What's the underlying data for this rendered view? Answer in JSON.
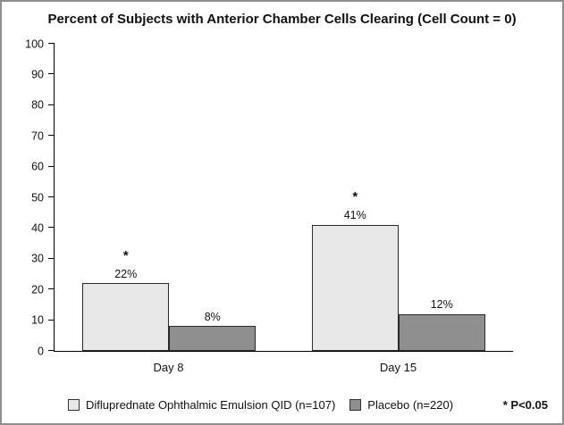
{
  "chart_data": {
    "type": "bar",
    "title": "Percent of Subjects with Anterior Chamber Cells Clearing (Cell Count = 0)",
    "categories": [
      "Day 8",
      "Day 15"
    ],
    "series": [
      {
        "name": "Difluprednate Ophthalmic Emulsion QID (n=107)",
        "values": [
          22,
          41
        ],
        "value_labels": [
          "22%",
          "41%"
        ],
        "significant": [
          true,
          true
        ],
        "color": "#e8e8e8"
      },
      {
        "name": "Placebo (n=220)",
        "values": [
          8,
          12
        ],
        "value_labels": [
          "8%",
          "12%"
        ],
        "significant": [
          false,
          false
        ],
        "color": "#8f8f8f"
      }
    ],
    "xlabel": "",
    "ylabel": "",
    "ylim": [
      0,
      100
    ],
    "yticks": [
      0,
      10,
      20,
      30,
      40,
      50,
      60,
      70,
      80,
      90,
      100
    ],
    "grid": false,
    "legend_position": "bottom",
    "significance_marker": "*",
    "significance_note": "* P<0.05",
    "bar_border_color": "#2a2a2a"
  }
}
